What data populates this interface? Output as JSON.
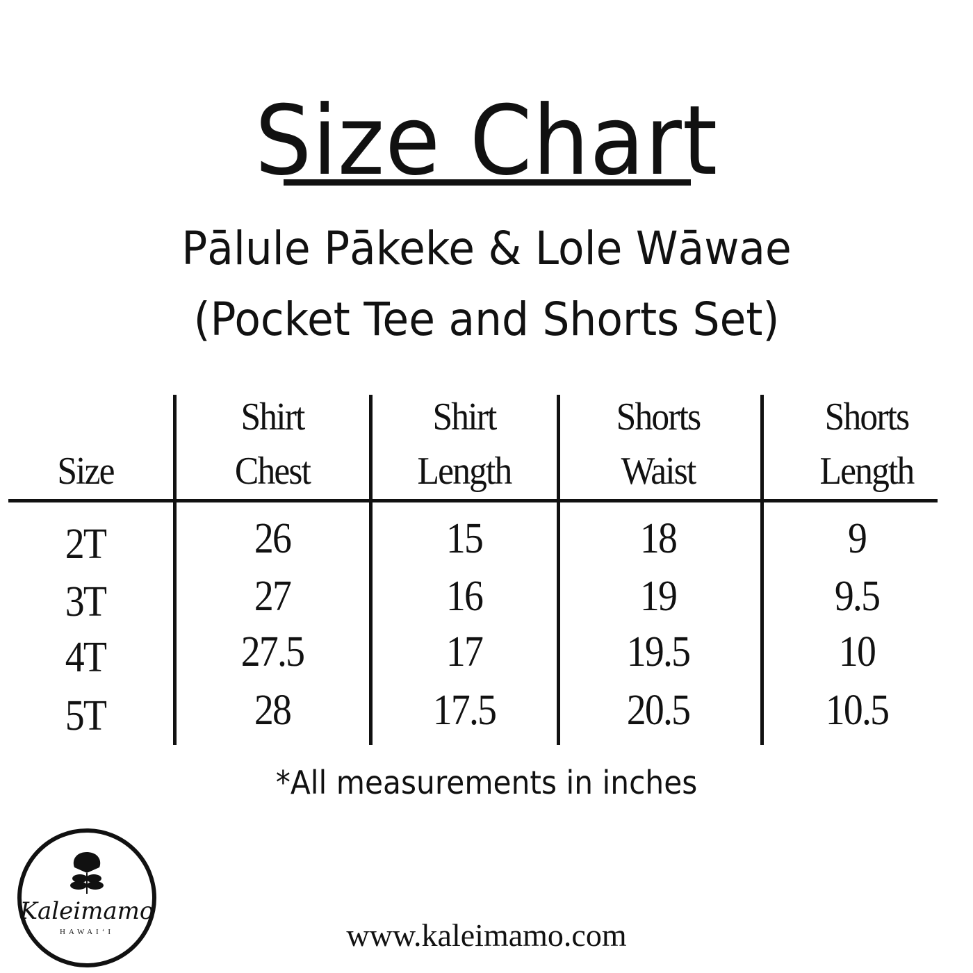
{
  "title": "Size Chart",
  "subtitle_line1": "Pālule Pākeke & Lole Wāwae",
  "subtitle_line2": "(Pocket Tee and Shorts Set)",
  "table": {
    "headers": [
      {
        "line1": "",
        "line2": "Size"
      },
      {
        "line1": "Shirt",
        "line2": "Chest"
      },
      {
        "line1": "Shirt",
        "line2": "Length"
      },
      {
        "line1": "Shorts",
        "line2": "Waist"
      },
      {
        "line1": "Shorts",
        "line2": "Length"
      }
    ],
    "rows": [
      [
        "2T",
        "26",
        "15",
        "18",
        "9"
      ],
      [
        "3T",
        "27",
        "16",
        "19",
        "9.5"
      ],
      [
        "4T",
        "27.5",
        "17",
        "19.5",
        "10"
      ],
      [
        "5T",
        "28",
        "17.5",
        "20.5",
        "10.5"
      ]
    ]
  },
  "note": "*All measurements in inches",
  "website": "www.kaleimamo.com",
  "logo": {
    "brand": "Kaleimamo",
    "tagline": "HAWAIʻI",
    "icon": "flower-icon"
  }
}
